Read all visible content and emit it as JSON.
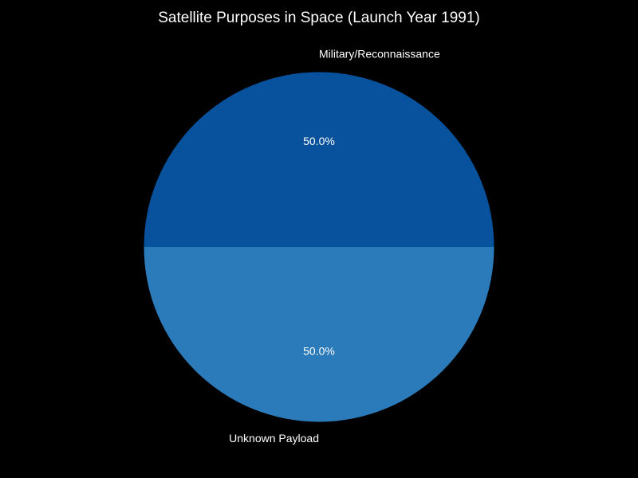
{
  "chart_data": {
    "type": "pie",
    "title": "Satellite Purposes in Space (Launch Year 1991)",
    "slices": [
      {
        "label": "Military/Reconnaissance",
        "value": 50.0,
        "percent_label": "50.0%",
        "color": "#08519c"
      },
      {
        "label": "Unknown Payload",
        "value": 50.0,
        "percent_label": "50.0%",
        "color": "#2b7bba"
      }
    ],
    "background_color": "#000000",
    "text_color": "#ffffff"
  }
}
